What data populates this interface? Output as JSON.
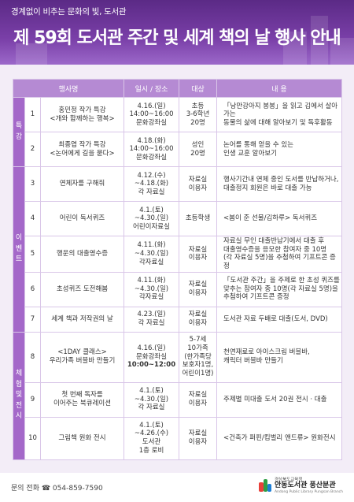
{
  "header": {
    "slogan": "경계없이 비추는 문화의 빛, 도서관",
    "title": "제 59회 도서관 주간 및 세계 책의 날 행사 안내"
  },
  "table": {
    "headers": [
      "행사명",
      "일시 / 장소",
      "대상",
      "내 용"
    ],
    "categories": [
      {
        "label": "특강",
        "chars": [
          "특",
          "강"
        ]
      },
      {
        "label": "이벤트",
        "chars": [
          "이",
          "벤",
          "트"
        ]
      },
      {
        "label": "체험및전시",
        "chars": [
          "체",
          "험",
          "및",
          "전",
          "시"
        ]
      }
    ],
    "rows": [
      {
        "no": "1",
        "name": [
          "홍민정 작가 특강",
          "<개와 함께하는 행복>"
        ],
        "when": [
          "4.16.(일)",
          "14:00~16:00",
          "문화강좌실"
        ],
        "target": [
          "초등",
          "3-6학년",
          "20명"
        ],
        "content": [
          "「낭만강아지 봉봉」을 읽고 김에서 살아가는",
          "동물의 삶에 대해 알아보기 및 독후활동"
        ]
      },
      {
        "no": "2",
        "name": [
          "최종엽 작가 특강",
          "<논어에게 길을 묻다>"
        ],
        "when": [
          "4.18.(화)",
          "14:00~16:00",
          "문화강좌실"
        ],
        "target": [
          "성인",
          "20명"
        ],
        "content": [
          "논어를 통해 얻을 수 있는",
          "인생 교훈 알아보기"
        ]
      },
      {
        "no": "3",
        "name": [
          "연체자를 구해줘"
        ],
        "when": [
          "4.12.(수)",
          "~4.18.(화)",
          "각 자료실"
        ],
        "target": [
          "자료실",
          "이용자"
        ],
        "content": [
          "행사기간내 연체 중인 도서를 반납하거나,",
          "대출정지 회원은 바로 대출 가능"
        ]
      },
      {
        "no": "4",
        "name": [
          "어린이 독서퀴즈"
        ],
        "when": [
          "4.1.(토)",
          "~4.30.(일)",
          "어린이자료실"
        ],
        "target": [
          "초등학생"
        ],
        "content": [
          "<봄이 준 선물/김하루> 독서퀴즈"
        ]
      },
      {
        "no": "5",
        "name": [
          "행운의 대출영수증"
        ],
        "when": [
          "4.11.(화)",
          "~4.30.(일)",
          "각자료실"
        ],
        "target": [
          "자료실",
          "이용자"
        ],
        "content": [
          "자료실 무인 대출반납기에서 대출 후",
          "대출영수증을 응모한 참여자 중 10명",
          "(각 자료실 5명)을 추첨하여 기프트콘 증정"
        ]
      },
      {
        "no": "6",
        "name": [
          "초성퀴즈 도전해봄"
        ],
        "when": [
          "4.11.(화)",
          "~4.30.(일)",
          "각자료실"
        ],
        "target": [
          "자료실",
          "이용자"
        ],
        "content": [
          "「도서관 주간」을 주제로 한 초성 퀴즈를",
          "맞추는 참여자 중 10명(각 자료실 5명)을",
          "추첨하여 기프트콘 증정"
        ]
      },
      {
        "no": "7",
        "name": [
          "세계 책과 저작권의 날"
        ],
        "when": [
          "4.23.(일)",
          "각 자료실"
        ],
        "target": [
          "자료실",
          "이용자"
        ],
        "content": [
          "도서관 자료 두배로 대출(도서, DVD)"
        ]
      },
      {
        "no": "8",
        "name": [
          "<1DAY 클래스>",
          "우리가족 버블바 만들기"
        ],
        "when": [
          "4.16.(일)",
          "문화강좌실",
          "10:00~12:00"
        ],
        "target": [
          "5-7세",
          "10가족",
          "(한가족당",
          "보호자1명,",
          "어린이1명)"
        ],
        "content": [
          "천연재료로 아이스크림 버블바,",
          "캐릭터 버블바 만들기"
        ]
      },
      {
        "no": "9",
        "name": [
          "첫 번째 독자를",
          "이어주는 북큐레이션"
        ],
        "when": [
          "4.1.(토)",
          "~4.30.(일)",
          "각 자료실"
        ],
        "target": [
          "자료실",
          "이용자"
        ],
        "content": [
          "주제별 미대출 도서 20권 전시 · 대출"
        ]
      },
      {
        "no": "10",
        "name": [
          "그림책 원화 전시"
        ],
        "when": [
          "4.1.(토)",
          "~4.26.(수)",
          "도서관",
          "1층 로비"
        ],
        "target": [
          "자료실",
          "이용자"
        ],
        "content": [
          "<건축가 퍼핀/킴벌리 앤드류> 원화전시"
        ]
      }
    ]
  },
  "footer": {
    "phone": "문의 전화 ☎ 054-859-7590",
    "logo_small": "경상북도교육청",
    "logo_name": "안동도서관 풍산분관",
    "logo_sub": "Andong Public Library Pungsan Branch"
  },
  "colors": {
    "banner": "#6a3398",
    "header_row": "#b58ad3",
    "category": "#a468c9",
    "background": "#f3edf7"
  }
}
